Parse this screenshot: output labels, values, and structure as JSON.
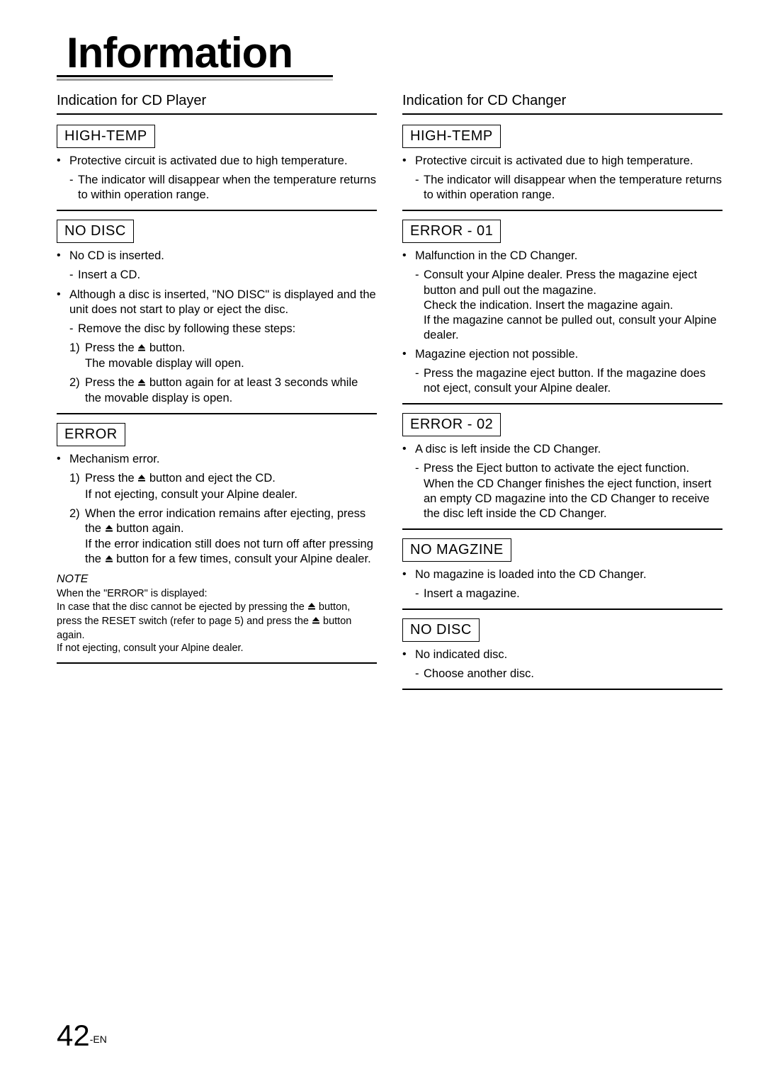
{
  "title": "Information",
  "page_number": "42",
  "page_suffix": "-EN",
  "eject_glyph": "⏏",
  "left": {
    "section_title": "Indication for CD Player",
    "blocks": [
      {
        "code": "HIGH-TEMP",
        "items": [
          {
            "lead": "Protective circuit is activated due to high temperature.",
            "subs": [
              "The indicator will disappear when the temperature returns to within operation range."
            ]
          }
        ]
      },
      {
        "code": "NO DISC",
        "items": [
          {
            "lead": "No CD is inserted.",
            "subs": [
              "Insert a CD."
            ]
          },
          {
            "lead": "Although a disc is inserted, \"NO DISC\" is displayed and the unit does not start to play or eject the disc.",
            "subs": [
              "Remove the disc by following these steps:"
            ],
            "steps": [
              {
                "label": "1)",
                "pre": "Press the ",
                "eject": true,
                "post": " button.",
                "after": "The movable display will open."
              },
              {
                "label": "2)",
                "pre": "Press the ",
                "eject": true,
                "post": " button again for at least 3 seconds while the movable display is open."
              }
            ]
          }
        ]
      },
      {
        "code": "ERROR",
        "items": [
          {
            "lead": "Mechanism error.",
            "steps": [
              {
                "label": "1)",
                "pre": "Press the ",
                "eject": true,
                "post": " button and eject the CD.",
                "after": "If not ejecting, consult your Alpine dealer."
              },
              {
                "label": "2)",
                "pre": "When the error indication remains after ejecting, press the ",
                "eject": true,
                "post": " button again.",
                "after_multi": [
                  "If the error indication still does not turn off after pressing the ",
                  " button for a few times, consult your Alpine dealer."
                ]
              }
            ]
          }
        ],
        "note": {
          "label": "NOTE",
          "line1": "When the \"ERROR\" is displayed:",
          "line2_pre": "In case that the disc cannot be ejected by pressing the ",
          "line2_mid": " button, press the RESET switch (refer to page 5) and press the ",
          "line2_post": " button again.",
          "line3": "If not ejecting, consult your Alpine dealer."
        }
      }
    ]
  },
  "right": {
    "section_title": "Indication for CD Changer",
    "blocks": [
      {
        "code": "HIGH-TEMP",
        "items": [
          {
            "lead": "Protective circuit is activated due to high temperature.",
            "subs": [
              "The indicator will disappear when the temperature returns to within operation range."
            ]
          }
        ]
      },
      {
        "code": "ERROR - 01",
        "items": [
          {
            "lead": "Malfunction in the CD Changer.",
            "subs": [
              "Consult your Alpine dealer. Press the magazine eject button and pull out the magazine.\nCheck the indication. Insert the magazine again.\nIf the magazine cannot be pulled out, consult your Alpine dealer."
            ]
          },
          {
            "lead": "Magazine ejection not possible.",
            "subs": [
              "Press the magazine eject button. If the magazine does not eject, consult your Alpine dealer."
            ]
          }
        ]
      },
      {
        "code": "ERROR - 02",
        "items": [
          {
            "lead": "A disc is left inside the CD Changer.",
            "subs": [
              "Press the Eject button to activate the eject function. When the CD Changer finishes the eject function, insert an empty CD magazine into the CD Changer to receive the disc left inside the CD Changer."
            ]
          }
        ]
      },
      {
        "code": "NO MAGZINE",
        "items": [
          {
            "lead": "No magazine is loaded into the CD Changer.",
            "subs": [
              "Insert a magazine."
            ]
          }
        ]
      },
      {
        "code": "NO DISC",
        "items": [
          {
            "lead": "No indicated disc.",
            "subs": [
              "Choose another disc."
            ]
          }
        ]
      }
    ]
  }
}
